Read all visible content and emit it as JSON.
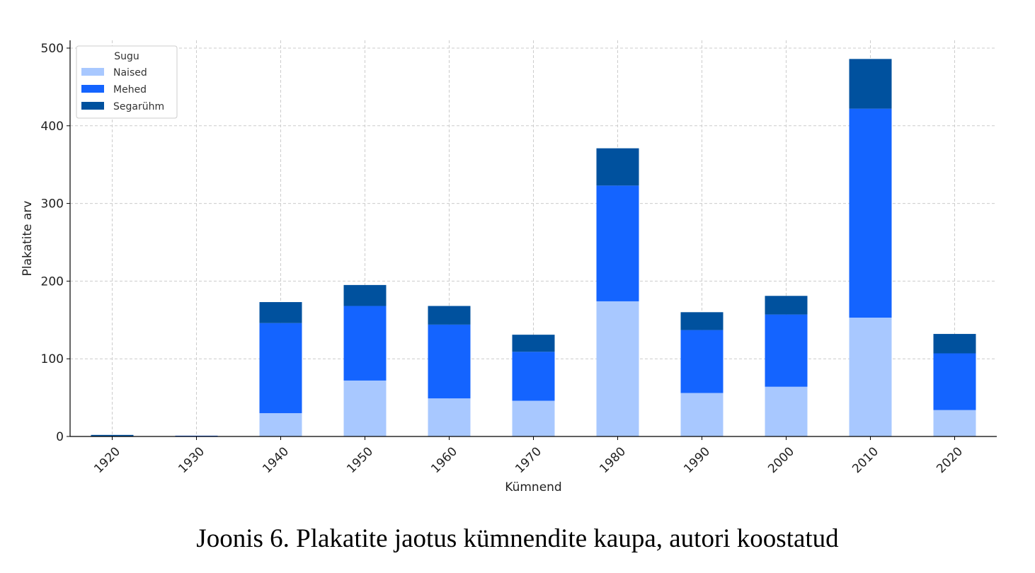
{
  "chart_data": {
    "type": "bar",
    "stacked": true,
    "categories": [
      "1920",
      "1930",
      "1940",
      "1950",
      "1960",
      "1970",
      "1980",
      "1990",
      "2000",
      "2010",
      "2020"
    ],
    "series": [
      {
        "name": "Naised",
        "color": "#a8c8ff",
        "values": [
          0,
          0,
          30,
          72,
          49,
          46,
          174,
          56,
          64,
          153,
          34
        ]
      },
      {
        "name": "Mehed",
        "color": "#1464ff",
        "values": [
          0,
          1,
          116,
          96,
          95,
          63,
          149,
          81,
          93,
          269,
          73
        ]
      },
      {
        "name": "Segarühm",
        "color": "#00519e",
        "values": [
          2,
          0,
          27,
          27,
          24,
          22,
          48,
          23,
          24,
          64,
          25
        ]
      }
    ],
    "xlabel": "Kümnend",
    "ylabel": "Plakatite arv",
    "ylim": [
      0,
      510
    ],
    "yticks": [
      0,
      100,
      200,
      300,
      400,
      500
    ],
    "grid": true,
    "legend": {
      "title": "Sugu",
      "placement": "top-left"
    }
  },
  "caption": "Joonis 6. Plakatite jaotus kümnendite kaupa, autori koostatud"
}
